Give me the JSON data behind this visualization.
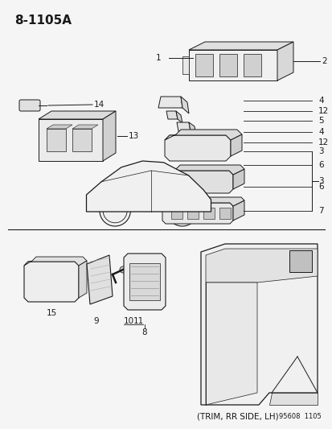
{
  "title": "8-1105A",
  "bg_color": "#f5f5f5",
  "footer_text": "95608  1105",
  "trim_label": "(TRIM, RR SIDE, LH)"
}
